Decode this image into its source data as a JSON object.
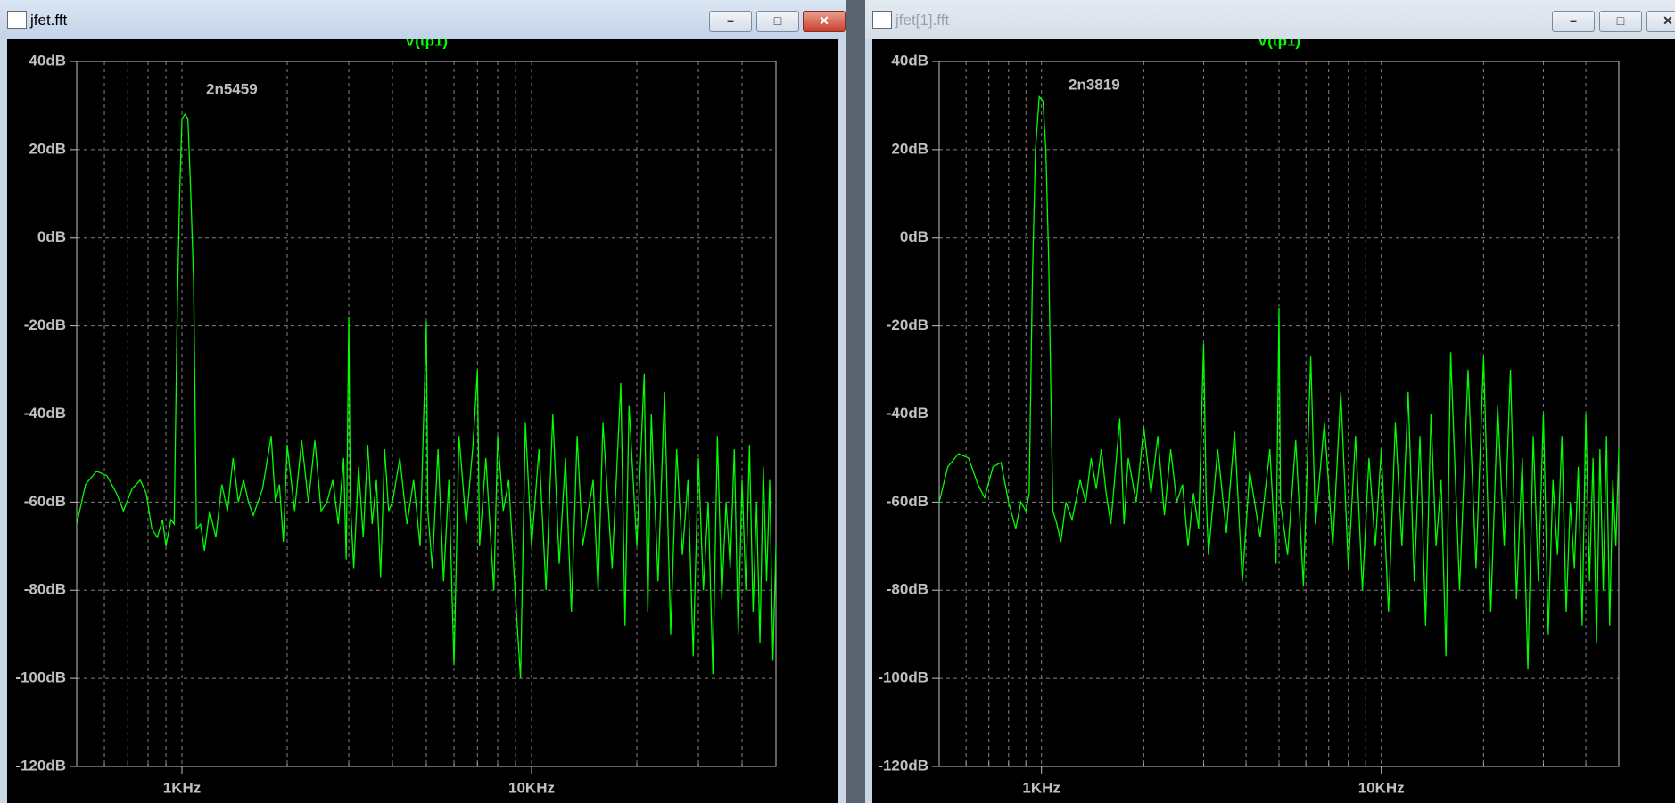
{
  "windows": [
    {
      "title": "jfet.fft"
    },
    {
      "title": "jfet[1].fft"
    }
  ],
  "chart_data": [
    {
      "type": "line",
      "title": "V(tp1)",
      "annotation": "2n5459",
      "color": "#00ff00",
      "log_x": true,
      "grid": true,
      "xlim": [
        500,
        50000
      ],
      "ylim": [
        -120,
        40
      ],
      "xticks": [
        {
          "value": 1000,
          "label": "1KHz"
        },
        {
          "value": 10000,
          "label": "10KHz"
        }
      ],
      "x_minor_ticks": [
        600,
        700,
        800,
        900,
        2000,
        3000,
        4000,
        5000,
        6000,
        7000,
        8000,
        9000,
        20000,
        30000,
        40000
      ],
      "yticks": [
        {
          "value": 40,
          "label": "40dB"
        },
        {
          "value": 20,
          "label": "20dB"
        },
        {
          "value": 0,
          "label": "0dB"
        },
        {
          "value": -20,
          "label": "-20dB"
        },
        {
          "value": -40,
          "label": "-40dB"
        },
        {
          "value": -60,
          "label": "-60dB"
        },
        {
          "value": -80,
          "label": "-80dB"
        },
        {
          "value": -100,
          "label": "-100dB"
        },
        {
          "value": -120,
          "label": "-120dB"
        }
      ],
      "x": [
        500,
        530,
        570,
        610,
        650,
        680,
        720,
        760,
        790,
        820,
        850,
        880,
        900,
        930,
        950,
        960,
        970,
        985,
        1000,
        1020,
        1040,
        1060,
        1080,
        1100,
        1130,
        1160,
        1200,
        1250,
        1300,
        1350,
        1400,
        1450,
        1500,
        1550,
        1600,
        1700,
        1800,
        1850,
        1900,
        1950,
        2000,
        2100,
        2200,
        2300,
        2400,
        2500,
        2600,
        2700,
        2800,
        2900,
        2950,
        3000,
        3030,
        3100,
        3200,
        3300,
        3400,
        3500,
        3600,
        3700,
        3800,
        3900,
        4000,
        4200,
        4400,
        4600,
        4800,
        5000,
        5050,
        5200,
        5400,
        5600,
        5800,
        6000,
        6200,
        6500,
        6800,
        7000,
        7100,
        7400,
        7800,
        8000,
        8300,
        8600,
        9000,
        9300,
        9600,
        10000,
        10500,
        11000,
        11500,
        12000,
        12500,
        13000,
        13500,
        14000,
        15000,
        15500,
        16000,
        17000,
        18000,
        18500,
        19000,
        20000,
        21000,
        21500,
        22000,
        23000,
        24000,
        25000,
        26000,
        27000,
        28000,
        29000,
        30000,
        31000,
        32000,
        33000,
        34000,
        35000,
        36000,
        37000,
        38000,
        39000,
        40000,
        41000,
        42000,
        43000,
        44000,
        45000,
        46000,
        47000,
        48000,
        49000,
        50000
      ],
      "values": [
        -65,
        -56,
        -53,
        -54,
        -58,
        -62,
        -57,
        -55,
        -58,
        -66,
        -68,
        -64,
        -70,
        -64,
        -65,
        -40,
        -15,
        10,
        27,
        28,
        27,
        10,
        -10,
        -66,
        -65,
        -71,
        -62,
        -68,
        -56,
        -62,
        -50,
        -60,
        -55,
        -60,
        -63,
        -57,
        -45,
        -60,
        -56,
        -69,
        -47,
        -62,
        -46,
        -60,
        -46,
        -62,
        -60,
        -55,
        -65,
        -50,
        -73,
        -18,
        -60,
        -75,
        -52,
        -68,
        -47,
        -65,
        -55,
        -77,
        -48,
        -62,
        -60,
        -50,
        -65,
        -55,
        -70,
        -19,
        -62,
        -75,
        -48,
        -78,
        -55,
        -97,
        -45,
        -65,
        -47,
        -30,
        -70,
        -50,
        -80,
        -45,
        -62,
        -55,
        -82,
        -100,
        -42,
        -70,
        -48,
        -80,
        -40,
        -74,
        -50,
        -85,
        -45,
        -70,
        -55,
        -80,
        -42,
        -75,
        -33,
        -88,
        -38,
        -70,
        -31,
        -85,
        -40,
        -78,
        -35,
        -90,
        -48,
        -72,
        -55,
        -95,
        -50,
        -80,
        -60,
        -99,
        -45,
        -82,
        -60,
        -75,
        -48,
        -90,
        -55,
        -80,
        -47,
        -85,
        -60,
        -92,
        -52,
        -78,
        -55,
        -96,
        -70
      ]
    },
    {
      "type": "line",
      "title": "V(tp1)",
      "annotation": "2n3819",
      "color": "#00ff00",
      "log_x": true,
      "grid": true,
      "xlim": [
        500,
        50000
      ],
      "ylim": [
        -120,
        40
      ],
      "xticks": [
        {
          "value": 1000,
          "label": "1KHz"
        },
        {
          "value": 10000,
          "label": "10KHz"
        }
      ],
      "x_minor_ticks": [
        600,
        700,
        800,
        900,
        2000,
        3000,
        4000,
        5000,
        6000,
        7000,
        8000,
        9000,
        20000,
        30000,
        40000
      ],
      "yticks": [
        {
          "value": 40,
          "label": "40dB"
        },
        {
          "value": 20,
          "label": "20dB"
        },
        {
          "value": 0,
          "label": "0dB"
        },
        {
          "value": -20,
          "label": "-20dB"
        },
        {
          "value": -40,
          "label": "-40dB"
        },
        {
          "value": -60,
          "label": "-60dB"
        },
        {
          "value": -80,
          "label": "-80dB"
        },
        {
          "value": -100,
          "label": "-100dB"
        },
        {
          "value": -120,
          "label": "-120dB"
        }
      ],
      "x": [
        500,
        530,
        570,
        610,
        650,
        680,
        720,
        760,
        800,
        840,
        870,
        900,
        920,
        940,
        960,
        985,
        1010,
        1030,
        1050,
        1080,
        1110,
        1140,
        1180,
        1230,
        1300,
        1350,
        1400,
        1450,
        1500,
        1550,
        1600,
        1700,
        1750,
        1800,
        1900,
        2000,
        2100,
        2200,
        2300,
        2400,
        2500,
        2600,
        2700,
        2800,
        2900,
        3000,
        3050,
        3100,
        3300,
        3500,
        3700,
        3900,
        4100,
        4400,
        4700,
        4900,
        5000,
        5050,
        5300,
        5600,
        5900,
        6200,
        6400,
        6800,
        7200,
        7600,
        8000,
        8400,
        8800,
        9200,
        9600,
        10000,
        10500,
        11000,
        11500,
        12000,
        12500,
        13000,
        13500,
        14000,
        14500,
        15000,
        15500,
        16000,
        17000,
        18000,
        19000,
        20000,
        21000,
        22000,
        23000,
        24000,
        25000,
        26000,
        27000,
        28000,
        29000,
        30000,
        31000,
        32000,
        33000,
        34000,
        35000,
        36000,
        37000,
        38000,
        39000,
        40000,
        41000,
        42000,
        43000,
        44000,
        45000,
        46000,
        47000,
        48000,
        49000,
        50000
      ],
      "values": [
        -60,
        -52,
        -49,
        -50,
        -56,
        -59,
        -52,
        -51,
        -60,
        -66,
        -60,
        -62,
        -58,
        -10,
        20,
        32,
        31,
        20,
        -5,
        -62,
        -65,
        -69,
        -60,
        -64,
        -55,
        -60,
        -50,
        -57,
        -48,
        -58,
        -65,
        -41,
        -65,
        -50,
        -60,
        -43,
        -58,
        -45,
        -63,
        -48,
        -60,
        -56,
        -70,
        -58,
        -66,
        -24,
        -58,
        -72,
        -48,
        -67,
        -44,
        -78,
        -53,
        -68,
        -48,
        -74,
        -16,
        -60,
        -72,
        -46,
        -79,
        -27,
        -65,
        -42,
        -70,
        -35,
        -75,
        -45,
        -80,
        -50,
        -70,
        -48,
        -85,
        -42,
        -70,
        -35,
        -78,
        -45,
        -88,
        -40,
        -70,
        -55,
        -95,
        -26,
        -80,
        -30,
        -75,
        -27,
        -85,
        -38,
        -70,
        -30,
        -82,
        -50,
        -98,
        -45,
        -78,
        -40,
        -90,
        -55,
        -72,
        -45,
        -85,
        -60,
        -75,
        -52,
        -88,
        -40,
        -78,
        -50,
        -92,
        -48,
        -80,
        -45,
        -88,
        -55,
        -70,
        -48
      ]
    }
  ]
}
